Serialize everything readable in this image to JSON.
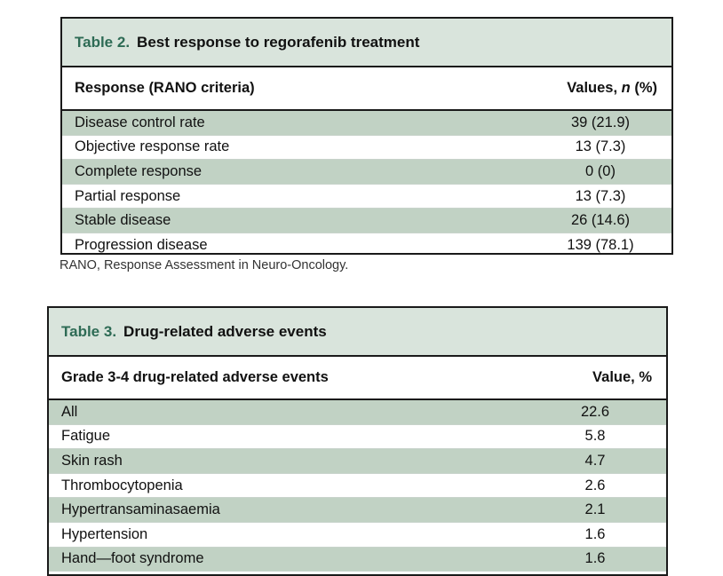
{
  "table2": {
    "number": "Table 2.",
    "title": "Best response to regorafenib treatment",
    "col1_header": "Response (RANO criteria)",
    "col2_header_pre": "Values, ",
    "col2_header_n": "n",
    "col2_header_post": " (%)",
    "rows": [
      {
        "label": "Disease control rate",
        "value": "39 (21.9)"
      },
      {
        "label": "Objective response rate",
        "value": "13 (7.3)"
      },
      {
        "label": "Complete response",
        "value": "0 (0)"
      },
      {
        "label": "Partial response",
        "value": "13 (7.3)"
      },
      {
        "label": "Stable disease",
        "value": "26 (14.6)"
      },
      {
        "label": "Progression disease",
        "value": "139 (78.1)"
      }
    ],
    "footnote": "RANO, Response Assessment in Neuro-Oncology."
  },
  "table3": {
    "number": "Table 3.",
    "title": "Drug-related adverse events",
    "col1_header": "Grade 3-4 drug-related adverse events",
    "col2_header": "Value, %",
    "rows": [
      {
        "label": "All",
        "value": "22.6"
      },
      {
        "label": "Fatigue",
        "value": "5.8"
      },
      {
        "label": "Skin rash",
        "value": "4.7"
      },
      {
        "label": "Thrombocytopenia",
        "value": "2.6"
      },
      {
        "label": "Hypertransaminasaemia",
        "value": "2.1"
      },
      {
        "label": "Hypertension",
        "value": "1.6"
      },
      {
        "label": "Hand—foot syndrome",
        "value": "1.6"
      }
    ]
  },
  "colors": {
    "title_bg": "#d9e4dc",
    "row_shade": "#c1d2c4",
    "table_number": "#2e6b55"
  }
}
